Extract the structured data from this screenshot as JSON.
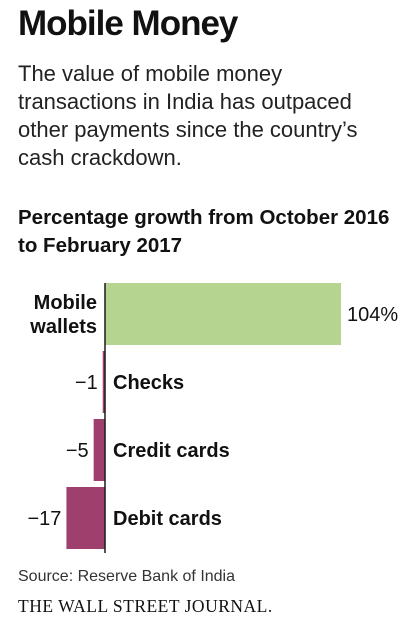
{
  "header": {
    "title": "Mobile Money",
    "subtitle": "The value of mobile money transactions in India has outpaced other payments since the country’s cash crackdown."
  },
  "chart_data": {
    "type": "bar",
    "orientation": "horizontal",
    "title": "Percentage growth from October 2016 to February 2017",
    "categories": [
      [
        "Mobile",
        "wallets"
      ],
      [
        "Checks"
      ],
      [
        "Credit cards"
      ],
      [
        "Debit cards"
      ]
    ],
    "values": [
      104,
      -1,
      -5,
      -17
    ],
    "value_labels": [
      "104%",
      "−1",
      "−5",
      "−17"
    ],
    "unit": "%",
    "colors": {
      "positive": "#b5d48f",
      "negative": "#9e3f6e",
      "axis": "#1a1a1a"
    },
    "grid": false,
    "legend": "none"
  },
  "footer": {
    "source": "Source: Reserve Bank of India",
    "brand": "THE WALL STREET JOURNAL."
  }
}
